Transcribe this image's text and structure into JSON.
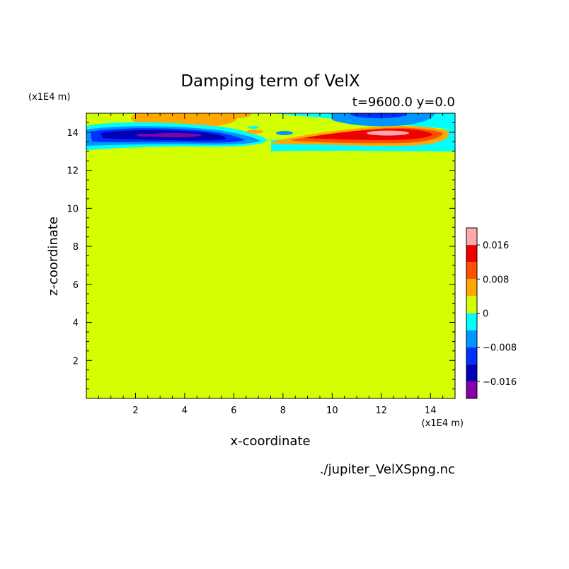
{
  "chart_data": {
    "type": "heatmap",
    "title": "Damping term of VelX",
    "subtitle": "t=9600.0 y=0.0",
    "xlabel": "x-coordinate",
    "ylabel": "z-coordinate",
    "x_unit": "(x1E4 m)",
    "y_unit": "(x1E4 m)",
    "source_file": "./jupiter_VelXSpng.nc",
    "xlim": [
      0,
      15
    ],
    "ylim": [
      0,
      15
    ],
    "x_ticks": [
      2,
      4,
      6,
      8,
      10,
      12,
      14
    ],
    "y_ticks": [
      2,
      4,
      6,
      8,
      10,
      12,
      14
    ],
    "background_level": 0,
    "colorbar": {
      "levels": [
        -0.02,
        -0.016,
        -0.012,
        -0.008,
        -0.004,
        0,
        0.004,
        0.008,
        0.012,
        0.016,
        0.02
      ],
      "colors": [
        "#8800aa",
        "#0000b4",
        "#0030ff",
        "#0096ff",
        "#00ffff",
        "#d4ff00",
        "#ffa800",
        "#ff5000",
        "#ee0000",
        "#ffaaaa"
      ],
      "tick_values": [
        0.016,
        0.008,
        0,
        -0.008,
        -0.016
      ],
      "tick_labels": [
        "0.016",
        "0.008",
        "0",
        "−0.008",
        "−0.016"
      ]
    },
    "features": [
      {
        "name": "upper-left positive band",
        "value": 0.006,
        "x": [
          1.3,
          5.6
        ],
        "z": [
          14.3,
          15
        ]
      },
      {
        "name": "upper-left negative band",
        "value": -0.016,
        "x": [
          0.1,
          7.3
        ],
        "z": [
          13.0,
          14.4
        ]
      },
      {
        "name": "upper-right negative band",
        "value": -0.008,
        "x": [
          7.5,
          15
        ],
        "z": [
          14.2,
          15
        ]
      },
      {
        "name": "upper-right positive band",
        "value": 0.018,
        "x": [
          7.6,
          15
        ],
        "z": [
          12.9,
          14.3
        ]
      },
      {
        "name": "below-sponge region",
        "value": 0,
        "x": [
          0,
          15
        ],
        "z": [
          0,
          13.0
        ]
      }
    ]
  }
}
